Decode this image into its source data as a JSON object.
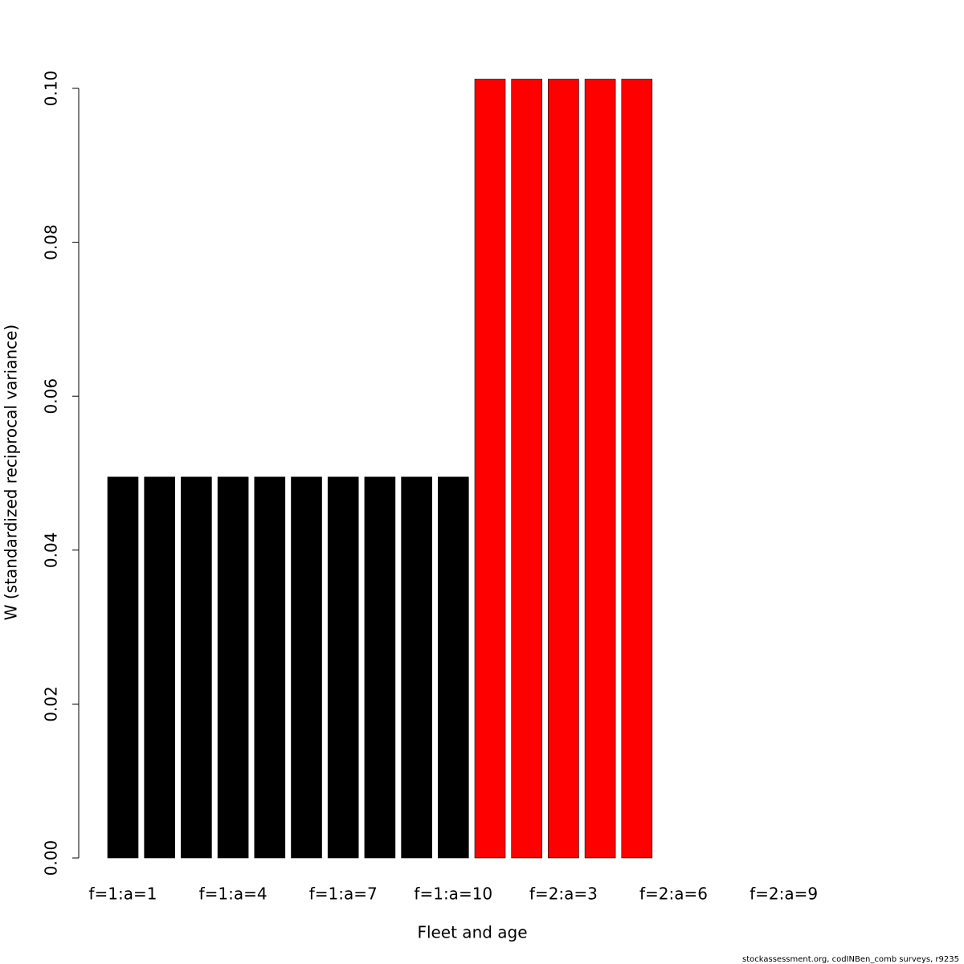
{
  "chart_data": {
    "type": "bar",
    "xlabel": "Fleet and age",
    "ylabel": "W (standardized reciprocal variance)",
    "footnote": "stockassessment.org, codINBen_comb surveys, r9235",
    "categories": [
      "f=1:a=1",
      null,
      null,
      "f=1:a=4",
      null,
      null,
      "f=1:a=7",
      null,
      null,
      "f=1:a=10",
      null,
      null,
      "f=2:a=3",
      null,
      null,
      "f=2:a=6",
      null,
      null,
      "f=2:a=9",
      null
    ],
    "values": [
      0.0495,
      0.0495,
      0.0495,
      0.0495,
      0.0495,
      0.0495,
      0.0495,
      0.0495,
      0.0495,
      0.0495,
      0.1012,
      0.1012,
      0.1012,
      0.1012,
      0.1012,
      null,
      null,
      null,
      null,
      null
    ],
    "colors": [
      "#000000",
      "#000000",
      "#000000",
      "#000000",
      "#000000",
      "#000000",
      "#000000",
      "#000000",
      "#000000",
      "#000000",
      "#ff0000",
      "#ff0000",
      "#ff0000",
      "#ff0000",
      "#ff0000",
      null,
      null,
      null,
      null,
      null
    ],
    "ylim": [
      0,
      0.1
    ],
    "yticks": [
      {
        "value": 0,
        "label": "0.00"
      },
      {
        "value": 0.02,
        "label": "0.02"
      },
      {
        "value": 0.04,
        "label": "0.04"
      },
      {
        "value": 0.06,
        "label": "0.06"
      },
      {
        "value": 0.08,
        "label": "0.08"
      },
      {
        "value": 0.1,
        "label": "0.10"
      }
    ],
    "grid": false
  }
}
